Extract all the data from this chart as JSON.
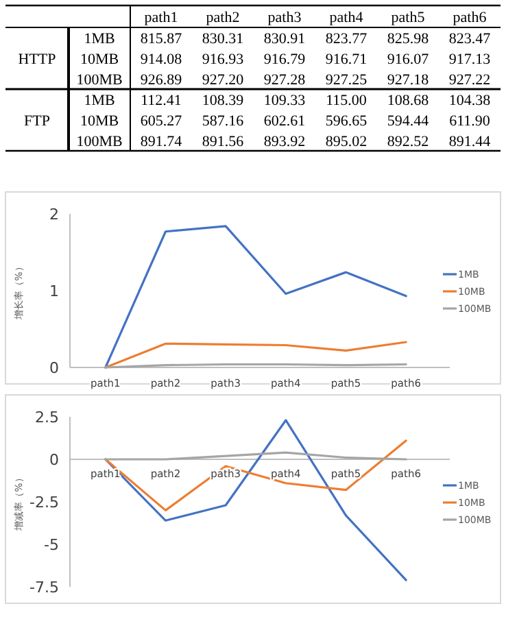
{
  "chart_data": [
    {
      "type": "heatmap",
      "categories": [
        "path1",
        "path2",
        "path3",
        "path4",
        "path5",
        "path6"
      ],
      "y_categories": [
        "1MB",
        "10MB",
        "100MB",
        "1MB",
        "10MB",
        "100MB"
      ],
      "y2_categories": [
        null,
        "HTTP",
        null,
        null,
        "FTP",
        null
      ],
      "cells": [
        [
          815.87,
          830.31,
          830.91,
          823.77,
          825.98,
          823.47
        ],
        [
          914.08,
          916.93,
          916.79,
          916.71,
          916.07,
          917.13
        ],
        [
          926.89,
          927.2,
          927.28,
          927.25,
          927.18,
          927.22
        ],
        [
          112.41,
          108.39,
          109.33,
          115.0,
          108.68,
          104.38
        ],
        [
          605.27,
          587.16,
          602.61,
          596.65,
          594.44,
          611.9
        ],
        [
          891.74,
          891.56,
          893.92,
          895.02,
          892.52,
          891.44
        ]
      ],
      "cell_labels": [
        [
          "815.87",
          "830.31",
          "830.91",
          "823.77",
          "825.98",
          "823.47"
        ],
        [
          "914.08",
          "916.93",
          "916.79",
          "916.71",
          "916.07",
          "917.13"
        ],
        [
          "926.89",
          "927.20",
          "927.28",
          "927.25",
          "927.18",
          "927.22"
        ],
        [
          "112.41",
          "108.39",
          "109.33",
          "115.00",
          "108.68",
          "104.38"
        ],
        [
          "605.27",
          "587.16",
          "602.61",
          "596.65",
          "594.44",
          "611.90"
        ],
        [
          "891.74",
          "891.56",
          "893.92",
          "895.02",
          "892.52",
          "891.44"
        ]
      ]
    },
    {
      "type": "line",
      "ylabel": "增长率（%）",
      "categories": [
        "path1",
        "path2",
        "path3",
        "path4",
        "path5",
        "path6"
      ],
      "ylim": [
        0,
        2
      ],
      "yticks": [
        0,
        1,
        2
      ],
      "grid": false,
      "legend": "right",
      "marker": "none",
      "series": [
        {
          "name": "1MB",
          "color": "#4472c4",
          "values": [
            0,
            1.77,
            1.84,
            0.96,
            1.24,
            0.93
          ]
        },
        {
          "name": "10MB",
          "color": "#ed7d31",
          "values": [
            0,
            0.31,
            0.3,
            0.29,
            0.22,
            0.33
          ]
        },
        {
          "name": "100MB",
          "color": "#a5a5a5",
          "values": [
            0,
            0.03,
            0.04,
            0.04,
            0.03,
            0.04
          ]
        }
      ]
    },
    {
      "type": "line",
      "ylabel": "增减率（%）",
      "categories": [
        "path1",
        "path2",
        "path3",
        "path4",
        "path5",
        "path6"
      ],
      "ylim": [
        -7.5,
        2.5
      ],
      "yticks": [
        -7.5,
        -5,
        -2.5,
        0,
        2.5
      ],
      "grid": false,
      "legend": "right",
      "marker": "none",
      "series": [
        {
          "name": "1MB",
          "color": "#4472c4",
          "values": [
            0,
            -3.6,
            -2.7,
            2.3,
            -3.3,
            -7.1
          ]
        },
        {
          "name": "10MB",
          "color": "#ed7d31",
          "values": [
            0,
            -3.0,
            -0.4,
            -1.4,
            -1.8,
            1.1
          ]
        },
        {
          "name": "100MB",
          "color": "#a5a5a5",
          "values": [
            0,
            0,
            0.2,
            0.4,
            0.1,
            0
          ]
        }
      ]
    }
  ]
}
